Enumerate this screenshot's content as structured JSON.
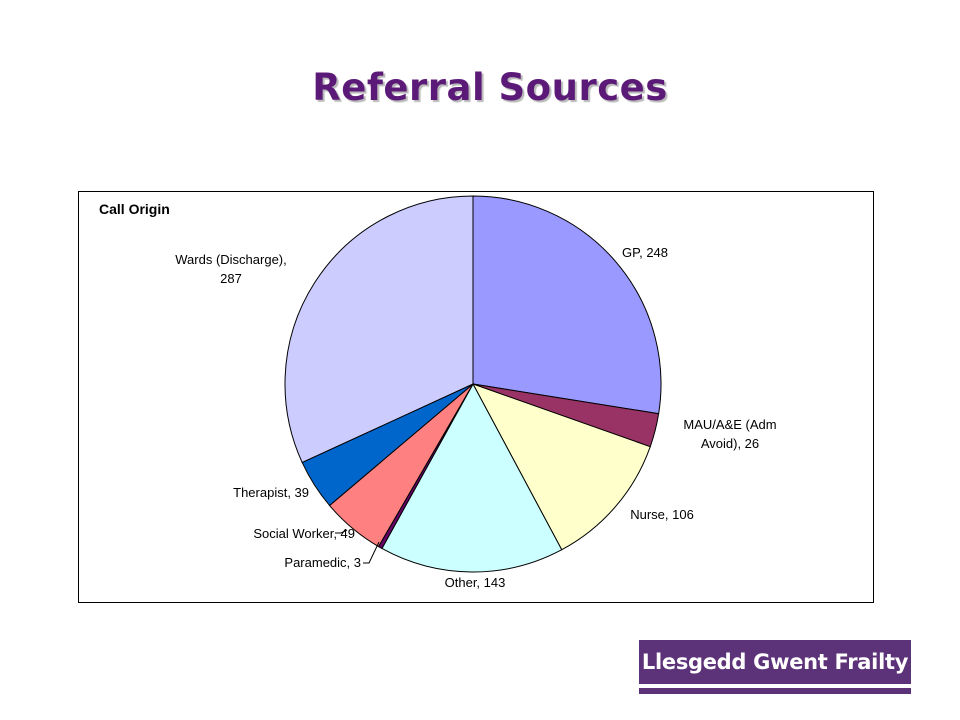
{
  "slide": {
    "title": "Referral Sources"
  },
  "chart_data": {
    "type": "pie",
    "title": "Call Origin",
    "slices": [
      {
        "category": "GP",
        "value": 248,
        "color": "#9999ff",
        "label_lines": [
          "GP, 248"
        ]
      },
      {
        "category": "MAU/A&E (Adm Avoid)",
        "value": 26,
        "color": "#993366",
        "label_lines": [
          "MAU/A&E (Adm",
          "Avoid), 26"
        ]
      },
      {
        "category": "Nurse",
        "value": 106,
        "color": "#ffffcc",
        "label_lines": [
          "Nurse, 106"
        ]
      },
      {
        "category": "Other",
        "value": 143,
        "color": "#ccffff",
        "label_lines": [
          "Other, 143"
        ]
      },
      {
        "category": "Paramedic",
        "value": 3,
        "color": "#660066",
        "label_lines": [
          "Paramedic, 3"
        ]
      },
      {
        "category": "Social Worker",
        "value": 49,
        "color": "#ff8080",
        "label_lines": [
          "Social Worker, 49"
        ]
      },
      {
        "category": "Therapist",
        "value": 39,
        "color": "#0066cc",
        "label_lines": [
          "Therapist, 39"
        ]
      },
      {
        "category": "Wards (Discharge)",
        "value": 287,
        "color": "#ccccff",
        "label_lines": [
          "Wards (Discharge),",
          "287"
        ]
      }
    ],
    "start_angle": "12 o'clock",
    "direction": "clockwise",
    "legend": "none",
    "data_labels": "category name and value"
  },
  "logo": {
    "text": "Llesgedd Gwent Frailty"
  }
}
